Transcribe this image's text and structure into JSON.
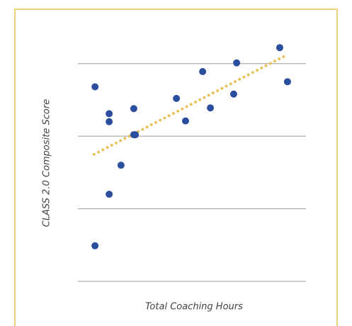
{
  "chart_data": {
    "type": "scatter",
    "x_label": "Total Coaching Hours",
    "y_label": "CLASS 2.0 Composite Score",
    "xlim": [
      0,
      10
    ],
    "ylim": [
      0,
      3.3
    ],
    "yticks": [
      0,
      1,
      2,
      3
    ],
    "grid": true,
    "color": "#2b4f9e",
    "x": [
      0.75,
      1.37,
      1.37,
      2.45,
      2.45,
      2.52,
      1.89,
      1.37,
      0.75,
      4.32,
      4.72,
      5.47,
      5.81,
      6.96,
      6.83,
      8.85,
      9.19
    ],
    "values": [
      2.68,
      2.31,
      2.2,
      2.38,
      2.02,
      2.02,
      1.6,
      1.2,
      0.49,
      2.52,
      2.21,
      2.89,
      2.39,
      3.01,
      2.58,
      3.22,
      2.75
    ],
    "trend": {
      "color": "#e8c15a",
      "x": [
        0.71,
        9.04
      ],
      "values": [
        1.75,
        3.1
      ]
    }
  }
}
